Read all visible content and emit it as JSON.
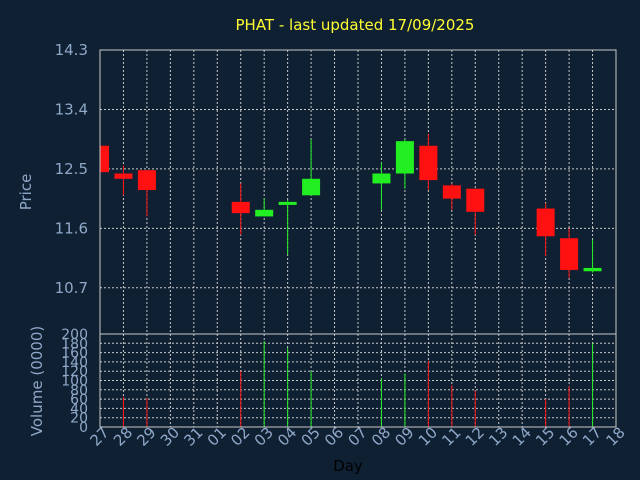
{
  "chart_data": {
    "type": "candlestick",
    "title": "PHAT - last updated 17/09/2025",
    "price_axis": {
      "label": "Price",
      "ylim": [
        10.0,
        14.3
      ],
      "ticks": [
        "14.3",
        "13.4",
        "12.5",
        "11.6",
        "10.7"
      ]
    },
    "volume_axis": {
      "label": "Volume (0000)",
      "ylim": [
        0,
        200
      ],
      "ticks": [
        "200",
        "180",
        "160",
        "140",
        "120",
        "100",
        "80",
        "60",
        "40",
        "20",
        "0"
      ]
    },
    "x_axis": {
      "label": "Day",
      "ticks": [
        "27",
        "28",
        "29",
        "30",
        "31",
        "01",
        "02",
        "03",
        "04",
        "05",
        "06",
        "07",
        "08",
        "09",
        "10",
        "11",
        "12",
        "13",
        "14",
        "15",
        "16",
        "17",
        "18"
      ]
    },
    "colors": {
      "up": "#22ee22",
      "down": "#ff1111"
    },
    "candles": [
      {
        "day": "27",
        "open": 12.85,
        "high": 12.85,
        "low": 12.45,
        "close": 12.45,
        "volume": 0
      },
      {
        "day": "28",
        "open": 12.43,
        "high": 12.55,
        "low": 12.1,
        "close": 12.35,
        "volume": 65
      },
      {
        "day": "29",
        "open": 12.48,
        "high": 12.48,
        "low": 11.78,
        "close": 12.18,
        "volume": 63
      },
      {
        "day": "02",
        "open": 12.0,
        "high": 12.28,
        "low": 11.5,
        "close": 11.83,
        "volume": 120
      },
      {
        "day": "03",
        "open": 11.78,
        "high": 12.05,
        "low": 11.78,
        "close": 11.88,
        "volume": 185
      },
      {
        "day": "04",
        "open": 11.97,
        "high": 12.03,
        "low": 11.2,
        "close": 12.0,
        "volume": 170
      },
      {
        "day": "05",
        "open": 12.1,
        "high": 12.95,
        "low": 12.1,
        "close": 12.35,
        "volume": 120
      },
      {
        "day": "08",
        "open": 12.28,
        "high": 12.6,
        "low": 11.88,
        "close": 12.43,
        "volume": 105
      },
      {
        "day": "09",
        "open": 12.43,
        "high": 12.95,
        "low": 12.2,
        "close": 12.92,
        "volume": 115
      },
      {
        "day": "10",
        "open": 12.85,
        "high": 13.03,
        "low": 12.18,
        "close": 12.33,
        "volume": 142
      },
      {
        "day": "11",
        "open": 12.25,
        "high": 12.28,
        "low": 11.88,
        "close": 12.05,
        "volume": 90
      },
      {
        "day": "12",
        "open": 12.2,
        "high": 12.2,
        "low": 11.5,
        "close": 11.85,
        "volume": 78
      },
      {
        "day": "15",
        "open": 11.9,
        "high": 11.98,
        "low": 11.18,
        "close": 11.48,
        "volume": 60
      },
      {
        "day": "16",
        "open": 11.45,
        "high": 11.6,
        "low": 10.85,
        "close": 10.97,
        "volume": 88
      },
      {
        "day": "17",
        "open": 10.95,
        "high": 11.43,
        "low": 10.93,
        "close": 11.0,
        "volume": 180
      }
    ]
  }
}
